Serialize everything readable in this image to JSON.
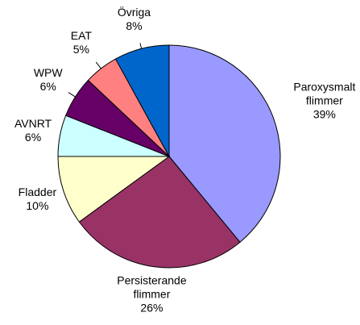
{
  "chart_data": {
    "type": "pie",
    "categories": [
      "Paroxysmalt flimmer",
      "Persisterande flimmer",
      "Fladder",
      "AVNRT",
      "WPW",
      "EAT",
      "Övriga"
    ],
    "values": [
      39,
      26,
      10,
      6,
      6,
      5,
      8
    ],
    "value_labels": [
      "39%",
      "26%",
      "10%",
      "6%",
      "6%",
      "5%",
      "8%"
    ],
    "colors": [
      "#9999ff",
      "#993366",
      "#ffffcc",
      "#ccffff",
      "#660066",
      "#ff8080",
      "#0066cc"
    ]
  }
}
